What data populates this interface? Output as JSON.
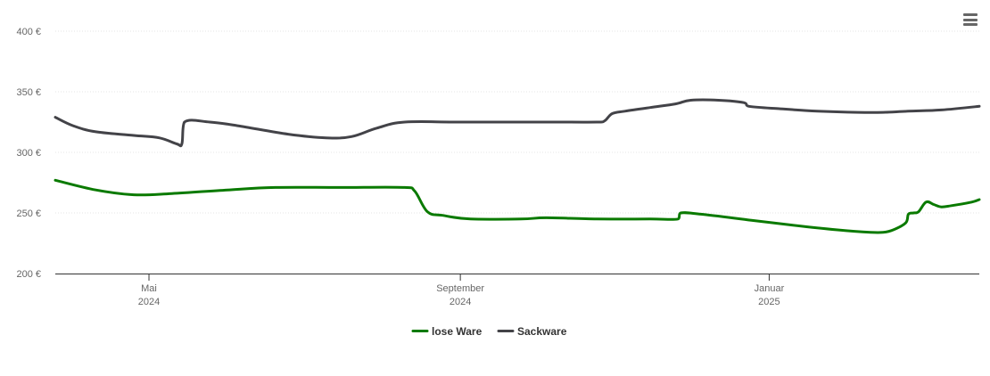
{
  "chart_data": {
    "type": "line",
    "x_axis": {
      "type": "date",
      "range": [
        "2024-03-25",
        "2025-03-25"
      ],
      "ticks": [
        {
          "date": "2024-05-01",
          "line1": "Mai",
          "line2": "2024"
        },
        {
          "date": "2024-09-01",
          "line1": "September",
          "line2": "2024"
        },
        {
          "date": "2025-01-01",
          "line1": "Januar",
          "line2": "2025"
        }
      ]
    },
    "y_axis": {
      "range": [
        200,
        400
      ],
      "ticks": [
        {
          "value": 200,
          "label": "200 €"
        },
        {
          "value": 250,
          "label": "250 €"
        },
        {
          "value": 300,
          "label": "300 €"
        },
        {
          "value": 350,
          "label": "350 €"
        },
        {
          "value": 400,
          "label": "400 €"
        }
      ],
      "gridlines": true
    },
    "legend": {
      "position": "bottom-center"
    },
    "series": [
      {
        "name": "lose Ware",
        "color": "#0a7a00",
        "points": [
          [
            "2024-03-25",
            277
          ],
          [
            "2024-04-10",
            269
          ],
          [
            "2024-04-25",
            265
          ],
          [
            "2024-05-10",
            266
          ],
          [
            "2024-06-01",
            269
          ],
          [
            "2024-06-20",
            271
          ],
          [
            "2024-07-15",
            271
          ],
          [
            "2024-08-10",
            271
          ],
          [
            "2024-08-14",
            268
          ],
          [
            "2024-08-19",
            251
          ],
          [
            "2024-08-25",
            248
          ],
          [
            "2024-09-05",
            245
          ],
          [
            "2024-09-25",
            245
          ],
          [
            "2024-10-05",
            246
          ],
          [
            "2024-10-25",
            245
          ],
          [
            "2024-11-15",
            245
          ],
          [
            "2024-11-26",
            245
          ],
          [
            "2024-11-27",
            250
          ],
          [
            "2024-12-05",
            249
          ],
          [
            "2024-12-25",
            244
          ],
          [
            "2025-01-10",
            240
          ],
          [
            "2025-01-28",
            236
          ],
          [
            "2025-02-10",
            234
          ],
          [
            "2025-02-15",
            234
          ],
          [
            "2025-02-19",
            236
          ],
          [
            "2025-02-24",
            242
          ],
          [
            "2025-02-25",
            249
          ],
          [
            "2025-02-27",
            250
          ],
          [
            "2025-03-01",
            251
          ],
          [
            "2025-03-04",
            259
          ],
          [
            "2025-03-07",
            257
          ],
          [
            "2025-03-10",
            255
          ],
          [
            "2025-03-14",
            256
          ],
          [
            "2025-03-22",
            259
          ],
          [
            "2025-03-25",
            261
          ]
        ]
      },
      {
        "name": "Sackware",
        "color": "#434348",
        "points": [
          [
            "2024-03-25",
            329
          ],
          [
            "2024-04-01",
            322
          ],
          [
            "2024-04-10",
            317
          ],
          [
            "2024-04-25",
            314
          ],
          [
            "2024-05-05",
            312
          ],
          [
            "2024-05-12",
            307
          ],
          [
            "2024-05-14",
            307
          ],
          [
            "2024-05-15",
            325
          ],
          [
            "2024-05-25",
            325
          ],
          [
            "2024-06-05",
            322
          ],
          [
            "2024-06-25",
            315
          ],
          [
            "2024-07-10",
            312
          ],
          [
            "2024-07-20",
            313
          ],
          [
            "2024-07-30",
            320
          ],
          [
            "2024-08-10",
            325
          ],
          [
            "2024-09-01",
            325
          ],
          [
            "2024-10-05",
            325
          ],
          [
            "2024-10-25",
            325
          ],
          [
            "2024-10-28",
            326
          ],
          [
            "2024-10-31",
            332
          ],
          [
            "2024-11-05",
            334
          ],
          [
            "2024-11-15",
            337
          ],
          [
            "2024-11-25",
            340
          ],
          [
            "2024-12-01",
            343
          ],
          [
            "2024-12-12",
            343
          ],
          [
            "2024-12-22",
            341
          ],
          [
            "2024-12-24",
            338
          ],
          [
            "2025-01-05",
            336
          ],
          [
            "2025-01-20",
            334
          ],
          [
            "2025-02-05",
            333
          ],
          [
            "2025-02-15",
            333
          ],
          [
            "2025-02-25",
            334
          ],
          [
            "2025-03-10",
            335
          ],
          [
            "2025-03-25",
            338
          ]
        ]
      }
    ]
  },
  "menu": {
    "icon": "hamburger-menu-icon"
  }
}
